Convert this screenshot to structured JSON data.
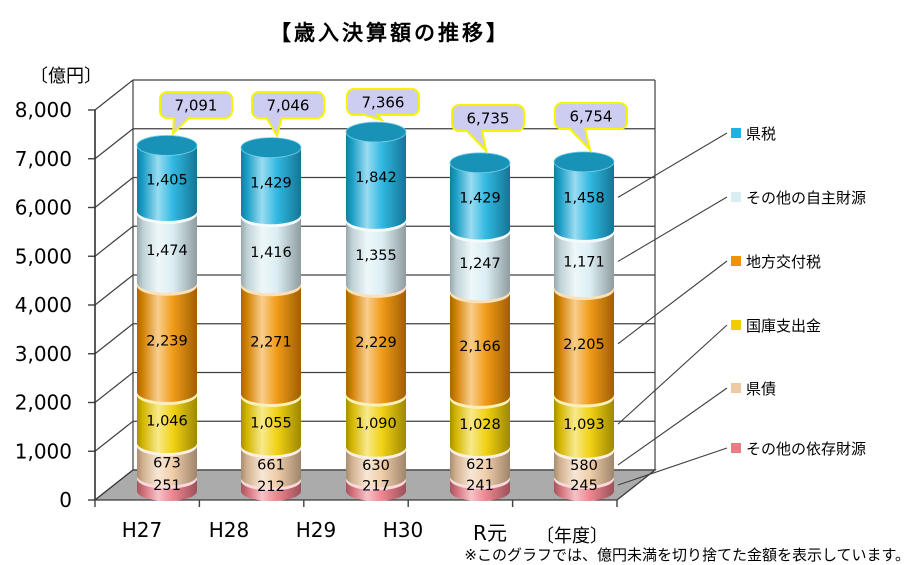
{
  "chart_data": {
    "type": "bar",
    "variant": "3d-stacked-cylinder",
    "title": "【歳入決算額の推移】",
    "y_axis_unit": "〔億円〕",
    "x_axis_unit": "〔年度〕",
    "footnote": "※このグラフでは、億円未満を切り捨てた金額を表示しています。",
    "ylim": [
      0,
      8000
    ],
    "y_ticks": [
      0,
      1000,
      2000,
      3000,
      4000,
      5000,
      6000,
      7000,
      8000
    ],
    "categories": [
      "H27",
      "H28",
      "H29",
      "H30",
      "R元"
    ],
    "series": [
      {
        "name": "その他の依存財源",
        "color": "#EC7A85",
        "values": [
          251,
          212,
          217,
          241,
          245
        ]
      },
      {
        "name": "県債",
        "color": "#EFC9A2",
        "values": [
          673,
          661,
          630,
          621,
          580
        ]
      },
      {
        "name": "国庫支出金",
        "color": "#F0CE00",
        "values": [
          1046,
          1055,
          1090,
          1028,
          1093
        ]
      },
      {
        "name": "地方交付税",
        "color": "#F09203",
        "values": [
          2239,
          2271,
          2229,
          2166,
          2205
        ]
      },
      {
        "name": "その他の自主財源",
        "color": "#D9EDF2",
        "values": [
          1474,
          1416,
          1355,
          1247,
          1171
        ]
      },
      {
        "name": "県税",
        "color": "#1FB2E0",
        "values": [
          1405,
          1429,
          1842,
          1429,
          1458
        ]
      }
    ],
    "totals": [
      7091,
      7046,
      7366,
      6735,
      6754
    ],
    "legend_order_top_to_bottom": [
      "県税",
      "その他の自主財源",
      "地方交付税",
      "国庫支出金",
      "県債",
      "その他の依存財源"
    ],
    "legend_position": "right",
    "grid": true,
    "callout_style": {
      "fill": "#CDCDF1",
      "border": "#F5F500"
    },
    "floor_color": "#ABABAB"
  }
}
